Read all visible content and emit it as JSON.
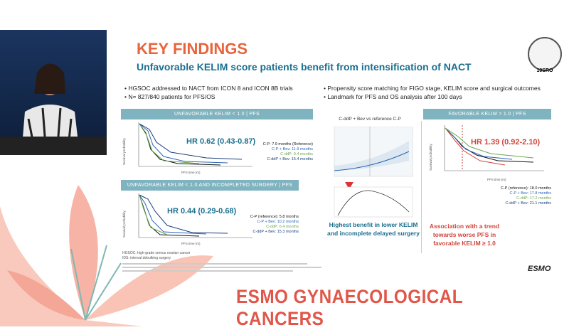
{
  "header": {
    "title": "KEY FINDINGS",
    "subtitle": "Unfavorable KELIM score patients benefit from intensification of NACT",
    "badge": "10SRO"
  },
  "bullets": {
    "left": [
      "HGSOC addressed to NACT from ICON 8 and ICON 8B trials",
      "N= 827/840 patients for PFS/OS"
    ],
    "right": [
      "Propensity score matching for FIGO stage, KELIM score and surgical outcomes",
      "Landmark for PFS and OS analysis  after 100 days"
    ]
  },
  "panels": [
    {
      "heading": "UNFAVORABLE KELIM < 1.0 | PFS",
      "hr": "HR 0.62 (0.43-0.87)",
      "y_label": "Survival probability",
      "x_label": "PFS time (m)",
      "legend": [
        "C-P: 7.9 months (Reference)",
        "C-P + Bev: 11.9 months",
        "C-ddP: 9.4 months",
        "C-ddP + Bev: 15.4 months"
      ]
    },
    {
      "heading": "UNFAVORABLE KELIM < 1.0 AND INCOMPLETED SURGERY | PFS",
      "hr": "HR 0.44 (0.29-0.68)",
      "y_label": "Survival probability",
      "x_label": "PFS time (m)",
      "legend": [
        "C-P (reference): 5.8 months",
        "C-P + Bev: 10.2 months",
        "C-ddP: 6.4 months",
        "C-ddP + Bev: 15.3 months"
      ]
    },
    {
      "heading": "FAVORABLE KELIM > 1.0 | PFS",
      "hr": "HR 1.39 (0.92-2.10)",
      "y_label": "Survival probability",
      "x_label": "PFS time (m)",
      "legend": [
        "C-P (reference): 18.0 months",
        "C-P + Bev: 17.8 months",
        "C-ddP: 17.2 months",
        "C-ddP + Bev: 21.1 months"
      ],
      "note": "Association with a trend towards worse PFS in favorable KELIM ≥ 1.0"
    }
  ],
  "middle": {
    "title": "C-ddP + Bev vs reference C-P",
    "note": "Highest benefit in lower KELIM and incomplete delayed surgery"
  },
  "footnotes": [
    "HGSOC: high-grade serous ovarian cancer",
    "IDS: interval debulking surgery"
  ],
  "footer": {
    "logo": "ESMO",
    "banner": "ESMO GYNAECOLOGICAL CANCERS"
  }
}
